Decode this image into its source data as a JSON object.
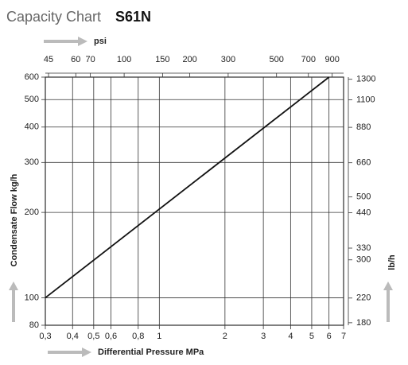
{
  "chart_data": {
    "type": "line",
    "title": "Capacity Chart",
    "subtitle": "S61N",
    "x_label": "Differential Pressure MPa",
    "x2_label": "psi",
    "y_label": "Condensate Flow kg/h",
    "y2_label": "lb/h",
    "x_log": true,
    "y_log": true,
    "grid": true,
    "xlim": [
      0.3,
      7
    ],
    "xticks": [
      {
        "value": 0.3,
        "label": "0,3"
      },
      {
        "value": 0.4,
        "label": "0,4"
      },
      {
        "value": 0.5,
        "label": "0,5"
      },
      {
        "value": 0.6,
        "label": "0,6"
      },
      {
        "value": 0.8,
        "label": "0,8"
      },
      1,
      2,
      3,
      4,
      5,
      6,
      7
    ],
    "x2lim": [
      43.5,
      1015
    ],
    "x2ticks": [
      45,
      60,
      70,
      100,
      150,
      200,
      300,
      500,
      700,
      900
    ],
    "ylim": [
      80,
      600
    ],
    "yticks": [
      80,
      100,
      200,
      300,
      400,
      500,
      600
    ],
    "y2lim": [
      176.4,
      1322.8
    ],
    "y2ticks": [
      180,
      220,
      300,
      330,
      440,
      500,
      660,
      880,
      1100,
      1300
    ],
    "x": [
      0.3,
      6
    ],
    "series": [
      {
        "name": "S61N",
        "color": "#111111",
        "values": [
          100,
          600
        ]
      }
    ]
  }
}
